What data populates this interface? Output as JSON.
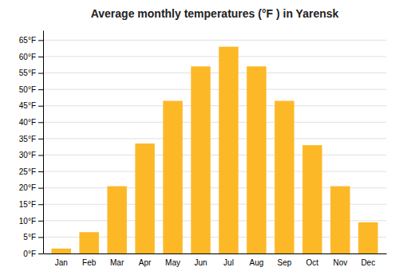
{
  "chart_data": {
    "type": "bar",
    "title": "Average monthly temperatures (°F ) in Yarensk",
    "categories": [
      "Jan",
      "Feb",
      "Mar",
      "Apr",
      "May",
      "Jun",
      "Jul",
      "Aug",
      "Sep",
      "Oct",
      "Nov",
      "Dec"
    ],
    "values": [
      1.5,
      6.5,
      20.5,
      33.5,
      46.5,
      57,
      63,
      57,
      46.5,
      33,
      20.5,
      9.5
    ],
    "color": "#FDB827",
    "ylim": [
      0,
      68
    ],
    "yticks": [
      {
        "value": 0,
        "label": "0°F"
      },
      {
        "value": 5,
        "label": "5°F"
      },
      {
        "value": 10,
        "label": "10°F"
      },
      {
        "value": 15,
        "label": "15°F"
      },
      {
        "value": 20,
        "label": "20°F"
      },
      {
        "value": 25,
        "label": "25°F"
      },
      {
        "value": 30,
        "label": "30°F"
      },
      {
        "value": 35,
        "label": "35°F"
      },
      {
        "value": 40,
        "label": "40°F"
      },
      {
        "value": 45,
        "label": "45°F"
      },
      {
        "value": 50,
        "label": "50°F"
      },
      {
        "value": 55,
        "label": "55°F"
      },
      {
        "value": 60,
        "label": "60°F"
      },
      {
        "value": 65,
        "label": "65°F"
      }
    ],
    "grid": true
  }
}
